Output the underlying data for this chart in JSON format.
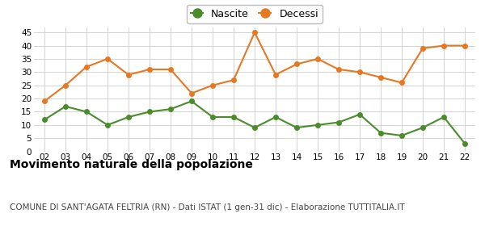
{
  "years": [
    "02",
    "03",
    "04",
    "05",
    "06",
    "07",
    "08",
    "09",
    "10",
    "11",
    "12",
    "13",
    "14",
    "15",
    "16",
    "17",
    "18",
    "19",
    "20",
    "21",
    "22"
  ],
  "nascite": [
    12,
    17,
    15,
    10,
    13,
    15,
    16,
    19,
    13,
    13,
    9,
    13,
    9,
    10,
    11,
    14,
    7,
    6,
    9,
    13,
    3
  ],
  "decessi": [
    19,
    25,
    32,
    35,
    29,
    31,
    31,
    22,
    25,
    27,
    45,
    29,
    33,
    35,
    31,
    30,
    28,
    26,
    39,
    40,
    40
  ],
  "nascite_color": "#4a8c2a",
  "decessi_color": "#e87722",
  "background_color": "#ffffff",
  "grid_color": "#cccccc",
  "ylim": [
    0,
    47
  ],
  "yticks": [
    0,
    5,
    10,
    15,
    20,
    25,
    30,
    35,
    40,
    45
  ],
  "title": "Movimento naturale della popolazione",
  "subtitle": "COMUNE DI SANT'AGATA FELTRIA (RN) - Dati ISTAT (1 gen-31 dic) - Elaborazione TUTTITALIA.IT",
  "legend_nascite": "Nascite",
  "legend_decessi": "Decessi",
  "title_fontsize": 10,
  "subtitle_fontsize": 7.5,
  "marker_size": 4,
  "linewidth": 1.5
}
